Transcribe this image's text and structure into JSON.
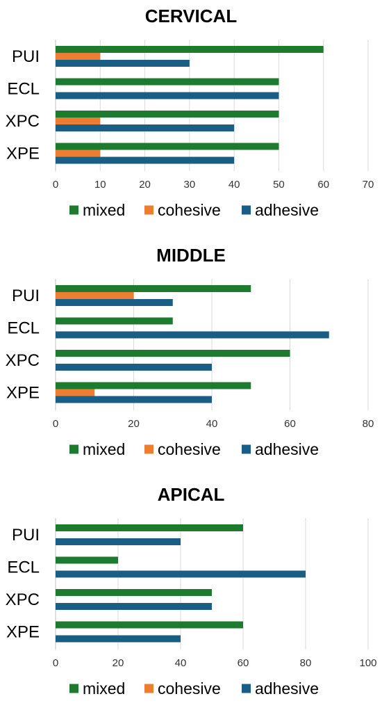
{
  "chart_data": [
    {
      "type": "bar",
      "title": "CERVICAL",
      "categories": [
        "PUI",
        "ECL",
        "XPC",
        "XPE"
      ],
      "series": [
        {
          "name": "mixed",
          "color": "#1e7a2e",
          "values": [
            60,
            50,
            50,
            50
          ]
        },
        {
          "name": "cohesive",
          "color": "#ed7d31",
          "values": [
            10,
            0,
            10,
            10
          ]
        },
        {
          "name": "adhesive",
          "color": "#1a5e85",
          "values": [
            30,
            50,
            40,
            40
          ]
        }
      ],
      "xlim": [
        0,
        70
      ],
      "ticks": [
        0,
        10,
        20,
        30,
        40,
        50,
        60,
        70
      ],
      "grid": true,
      "legend": "bottom"
    },
    {
      "type": "bar",
      "title": "MIDDLE",
      "categories": [
        "PUI",
        "ECL",
        "XPC",
        "XPE"
      ],
      "series": [
        {
          "name": "mixed",
          "color": "#1e7a2e",
          "values": [
            50,
            30,
            60,
            50
          ]
        },
        {
          "name": "cohesive",
          "color": "#ed7d31",
          "values": [
            20,
            0,
            0,
            10
          ]
        },
        {
          "name": "adhesive",
          "color": "#1a5e85",
          "values": [
            30,
            70,
            40,
            40
          ]
        }
      ],
      "xlim": [
        0,
        80
      ],
      "ticks": [
        0,
        20,
        40,
        60,
        80
      ],
      "grid": true,
      "legend": "bottom"
    },
    {
      "type": "bar",
      "title": "APICAL",
      "categories": [
        "PUI",
        "ECL",
        "XPC",
        "XPE"
      ],
      "series": [
        {
          "name": "mixed",
          "color": "#1e7a2e",
          "values": [
            60,
            20,
            50,
            60
          ]
        },
        {
          "name": "cohesive",
          "color": "#ed7d31",
          "values": [
            0,
            0,
            0,
            0
          ]
        },
        {
          "name": "adhesive",
          "color": "#1a5e85",
          "values": [
            40,
            80,
            50,
            40
          ]
        }
      ],
      "xlim": [
        0,
        100
      ],
      "ticks": [
        0,
        20,
        40,
        60,
        80,
        100
      ],
      "grid": true,
      "legend": "bottom"
    }
  ]
}
